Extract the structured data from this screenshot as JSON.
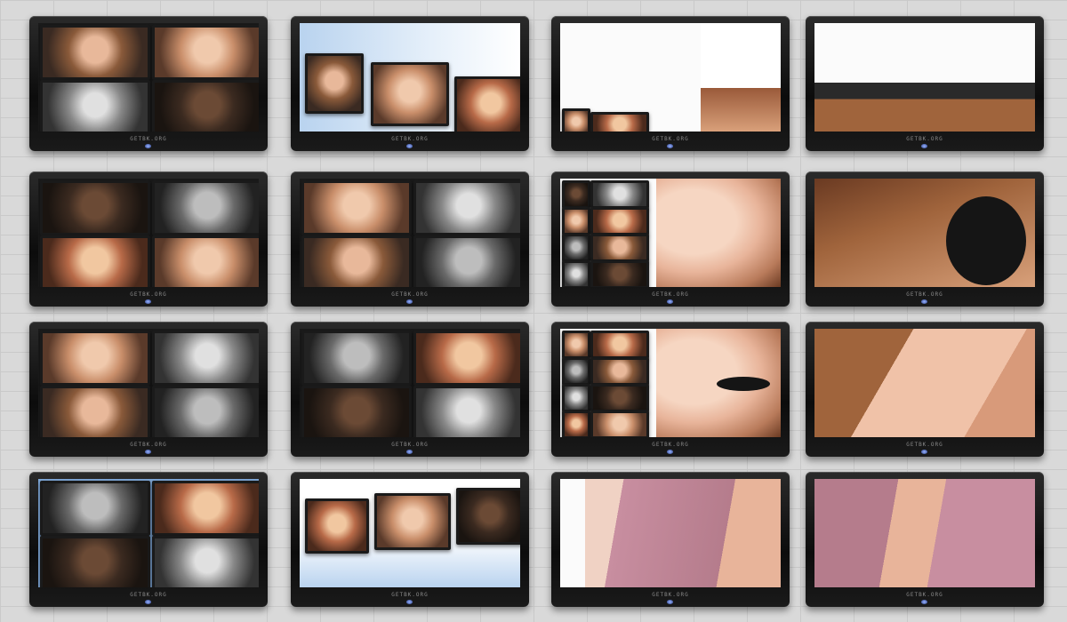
{
  "scene": {
    "description_name": "video-wall",
    "tv_brand": "GETBK.ORG",
    "rows": 4,
    "cols": 4,
    "colors": {
      "wall": "#d9d9d9",
      "bezel": "#0c0c0c",
      "screen_white": "#fafafa",
      "sky_blue": "#b9d3ef",
      "skin": "#f6d6c2",
      "hair": "#a0643c",
      "sweater": "#b57c8c"
    }
  }
}
